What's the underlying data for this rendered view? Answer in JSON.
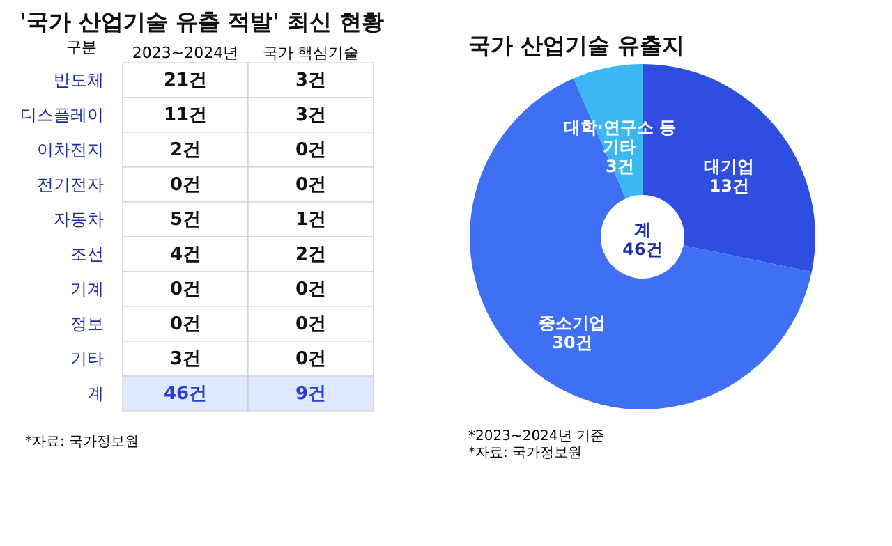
{
  "chart_data": [
    {
      "type": "heatmap",
      "title": "'국가 산업기술 유출 적발'\n최신 현황",
      "ylabel": "구분",
      "categories": [
        "2023~2024년",
        "국가 핵심기술"
      ],
      "y_categories": [
        "반도체",
        "디스플레이",
        "이차전지",
        "전기전자",
        "자동차",
        "조선",
        "기계",
        "정보",
        "기타",
        "계"
      ],
      "cells": [
        [
          21,
          3
        ],
        [
          11,
          3
        ],
        [
          2,
          0
        ],
        [
          0,
          0
        ],
        [
          5,
          1
        ],
        [
          4,
          2
        ],
        [
          0,
          0
        ],
        [
          0,
          0
        ],
        [
          3,
          0
        ],
        [
          46,
          9
        ]
      ],
      "cell_labels": [
        [
          "21건",
          "3건"
        ],
        [
          "11건",
          "3건"
        ],
        [
          "2건",
          "0건"
        ],
        [
          "0건",
          "0건"
        ],
        [
          "5건",
          "1건"
        ],
        [
          "4건",
          "2건"
        ],
        [
          "0건",
          "0건"
        ],
        [
          "0건",
          "0건"
        ],
        [
          "3건",
          "0건"
        ],
        [
          "46건",
          "9건"
        ]
      ],
      "annotations": [
        "*자료: 국가정보원"
      ]
    },
    {
      "type": "donut",
      "title": "국가 산업기술\n유출지",
      "categories": [
        "대기업",
        "중소기업",
        "대학·연구소 등\n기타"
      ],
      "values": [
        13,
        30,
        3
      ],
      "value_labels": [
        "13건",
        "30건",
        "3건"
      ],
      "colors": [
        "#2f4ee0",
        "#3f6ff2",
        "#3bb8f2"
      ],
      "annotations": [
        "계\n46건",
        "*2023~2024년 기준\n*자료: 국가정보원"
      ]
    }
  ]
}
